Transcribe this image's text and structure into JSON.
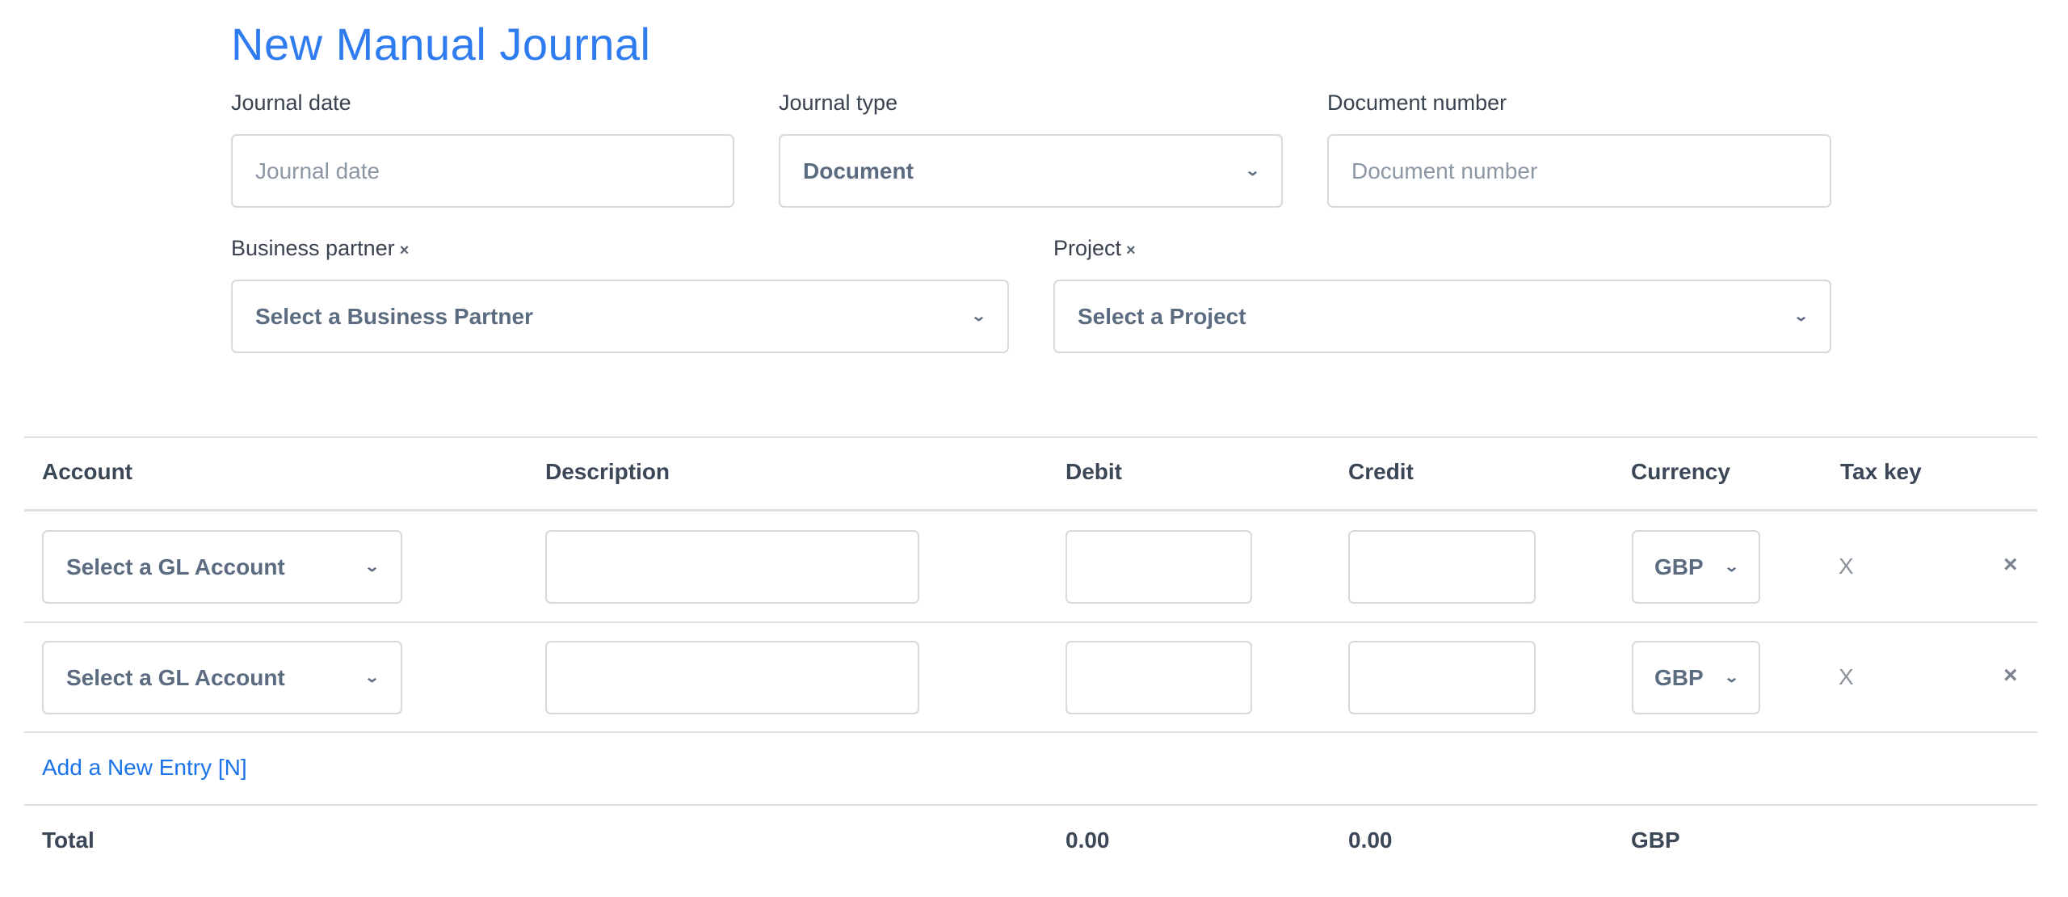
{
  "title": "New Manual Journal",
  "form": {
    "journal_date": {
      "label": "Journal date",
      "placeholder": "Journal date",
      "value": ""
    },
    "journal_type": {
      "label": "Journal type",
      "value": "Document"
    },
    "document_number": {
      "label": "Document number",
      "placeholder": "Document number",
      "value": ""
    },
    "business_partner": {
      "label": "Business partner",
      "clear": "×",
      "value": "Select a Business Partner"
    },
    "project": {
      "label": "Project",
      "clear": "×",
      "value": "Select a Project"
    }
  },
  "table": {
    "headers": [
      "Account",
      "Description",
      "Debit",
      "Credit",
      "Currency",
      "Tax key"
    ],
    "rows": [
      {
        "account": "Select a GL Account",
        "description": "",
        "debit": "",
        "credit": "",
        "currency": "GBP",
        "tax_key": "X",
        "delete": "×"
      },
      {
        "account": "Select a GL Account",
        "description": "",
        "debit": "",
        "credit": "",
        "currency": "GBP",
        "tax_key": "X",
        "delete": "×"
      }
    ],
    "add_entry": "Add a New Entry [N]",
    "total": {
      "label": "Total",
      "debit": "0.00",
      "credit": "0.00",
      "currency": "GBP"
    }
  },
  "colors": {
    "title": "#2f7cf0",
    "link": "#1a73e8",
    "border": "#d6d9de"
  },
  "icons": {
    "dropdown": "chevron-down-icon",
    "clear": "close-icon",
    "delete_row": "close-icon"
  }
}
